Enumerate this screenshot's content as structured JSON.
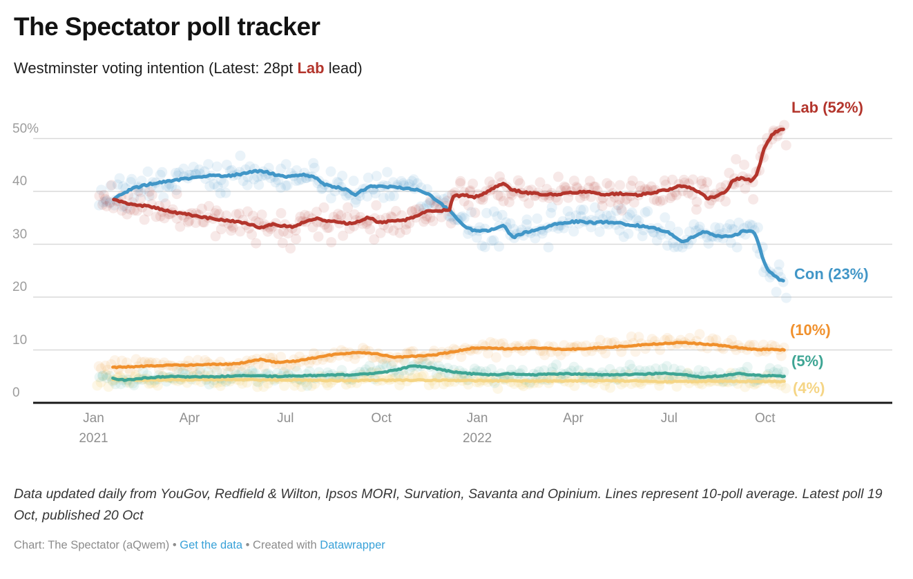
{
  "header": {
    "title": "The Spectator poll tracker"
  },
  "subtitle": {
    "prefix": "Westminster voting intention (Latest: 28pt ",
    "highlight": "Lab",
    "suffix": " lead)"
  },
  "colors": {
    "lab_red": "#b3352c",
    "con_blue": "#4196c7",
    "libdem_orange": "#f0902c",
    "green_teal": "#3ea594",
    "snp_yellow": "#f5d585",
    "gridline": "#d9d9d9",
    "axis_line": "#191919",
    "axis_text": "#9c9c9c",
    "link_blue": "#38a1d8"
  },
  "chart_data": {
    "type": "line",
    "title": "Westminster voting intention",
    "x_unit": "months since Jan 2021",
    "ylim": [
      0,
      56
    ],
    "grid": "horizontal",
    "y_axis": {
      "ticks": [
        {
          "value": 50,
          "label": "50%"
        },
        {
          "value": 40,
          "label": "40"
        },
        {
          "value": 30,
          "label": "30"
        },
        {
          "value": 20,
          "label": "20"
        },
        {
          "value": 10,
          "label": "10"
        },
        {
          "value": 0,
          "label": "0"
        }
      ]
    },
    "x_axis": {
      "ticks": [
        {
          "m": 0,
          "label": "Jan",
          "year": "2021"
        },
        {
          "m": 3,
          "label": "Apr",
          "year": ""
        },
        {
          "m": 6,
          "label": "Jul",
          "year": ""
        },
        {
          "m": 9,
          "label": "Oct",
          "year": ""
        },
        {
          "m": 12,
          "label": "Jan",
          "year": "2022"
        },
        {
          "m": 15,
          "label": "Apr",
          "year": ""
        },
        {
          "m": 18,
          "label": "Jul",
          "year": ""
        },
        {
          "m": 21,
          "label": "Oct",
          "year": ""
        }
      ]
    },
    "series": [
      {
        "id": "snp",
        "label": "(4%)",
        "latest": 4,
        "color": "#f5d585",
        "line_width": 4.5,
        "dot_opacity": 0.2,
        "scatter_sd": 0.95,
        "scatter_step": 0.1,
        "seed": 51,
        "points": [
          [
            0.6,
            4.4
          ],
          [
            2,
            4.3
          ],
          [
            4,
            4.4
          ],
          [
            6,
            4.3
          ],
          [
            8,
            4.2
          ],
          [
            10,
            4.3
          ],
          [
            12,
            4.2
          ],
          [
            14,
            4.1
          ],
          [
            16,
            4.2
          ],
          [
            18,
            4.0
          ],
          [
            19.5,
            4.1
          ],
          [
            21.6,
            4.0
          ]
        ]
      },
      {
        "id": "green",
        "label": "(5%)",
        "latest": 5,
        "color": "#3ea594",
        "line_width": 4.5,
        "dot_opacity": 0.1,
        "scatter_sd": 1.1,
        "scatter_step": 0.095,
        "seed": 41,
        "points": [
          [
            0.6,
            4.6
          ],
          [
            1.0,
            4.3
          ],
          [
            1.6,
            4.7
          ],
          [
            2.4,
            5.0
          ],
          [
            3.2,
            4.9
          ],
          [
            4.0,
            5.0
          ],
          [
            4.8,
            5.2
          ],
          [
            5.6,
            5.0
          ],
          [
            6.4,
            5.1
          ],
          [
            7.2,
            5.2
          ],
          [
            8.0,
            5.3
          ],
          [
            8.8,
            5.6
          ],
          [
            9.4,
            6.1
          ],
          [
            10.0,
            7.0
          ],
          [
            10.6,
            6.6
          ],
          [
            11.2,
            5.9
          ],
          [
            11.8,
            5.5
          ],
          [
            12.4,
            5.3
          ],
          [
            13.0,
            5.5
          ],
          [
            13.8,
            5.3
          ],
          [
            14.6,
            5.5
          ],
          [
            15.4,
            5.4
          ],
          [
            16.2,
            5.3
          ],
          [
            17.0,
            5.4
          ],
          [
            17.8,
            5.6
          ],
          [
            18.4,
            5.4
          ],
          [
            19.0,
            4.9
          ],
          [
            19.6,
            5.1
          ],
          [
            20.2,
            5.5
          ],
          [
            20.8,
            5.2
          ],
          [
            21.6,
            5.0
          ]
        ]
      },
      {
        "id": "libdem",
        "label": "(10%)",
        "latest": 10,
        "color": "#f0902c",
        "line_width": 4.5,
        "dot_opacity": 0.1,
        "scatter_sd": 1.15,
        "scatter_step": 0.095,
        "seed": 31,
        "points": [
          [
            0.6,
            6.7
          ],
          [
            1.5,
            6.9
          ],
          [
            2.5,
            7.1
          ],
          [
            3.5,
            7.2
          ],
          [
            4.5,
            7.4
          ],
          [
            5.2,
            8.2
          ],
          [
            5.7,
            7.7
          ],
          [
            6.3,
            7.9
          ],
          [
            7.0,
            8.6
          ],
          [
            7.6,
            9.2
          ],
          [
            8.2,
            9.5
          ],
          [
            8.8,
            9.3
          ],
          [
            9.4,
            8.6
          ],
          [
            10.0,
            8.8
          ],
          [
            10.6,
            9.0
          ],
          [
            11.2,
            9.6
          ],
          [
            11.8,
            10.3
          ],
          [
            12.4,
            10.4
          ],
          [
            13.0,
            10.2
          ],
          [
            13.6,
            10.4
          ],
          [
            14.2,
            10.3
          ],
          [
            14.8,
            10.1
          ],
          [
            15.4,
            10.3
          ],
          [
            16.0,
            10.5
          ],
          [
            16.6,
            10.7
          ],
          [
            17.2,
            11.0
          ],
          [
            17.8,
            11.2
          ],
          [
            18.4,
            11.4
          ],
          [
            19.0,
            11.2
          ],
          [
            19.6,
            10.9
          ],
          [
            20.2,
            10.4
          ],
          [
            20.8,
            10.1
          ],
          [
            21.6,
            10.0
          ]
        ]
      },
      {
        "id": "con",
        "label": "Con (23%)",
        "latest": 23,
        "color": "#4196c7",
        "line_width": 5,
        "dot_opacity": 0.11,
        "scatter_sd": 2.3,
        "scatter_step": 0.065,
        "seed": 21,
        "points": [
          [
            0.63,
            38.5
          ],
          [
            0.9,
            39.6
          ],
          [
            1.3,
            40.7
          ],
          [
            1.7,
            41.3
          ],
          [
            2.1,
            41.7
          ],
          [
            2.5,
            42.1
          ],
          [
            2.9,
            42.4
          ],
          [
            3.3,
            42.7
          ],
          [
            3.7,
            43.1
          ],
          [
            4.1,
            42.8
          ],
          [
            4.5,
            43.2
          ],
          [
            4.9,
            43.6
          ],
          [
            5.2,
            43.9
          ],
          [
            5.5,
            43.5
          ],
          [
            5.8,
            43.0
          ],
          [
            6.1,
            42.7
          ],
          [
            6.5,
            43.2
          ],
          [
            6.9,
            42.7
          ],
          [
            7.2,
            41.4
          ],
          [
            7.5,
            40.9
          ],
          [
            7.9,
            40.4
          ],
          [
            8.15,
            39.3
          ],
          [
            8.4,
            40.2
          ],
          [
            8.7,
            41.0
          ],
          [
            9.1,
            40.9
          ],
          [
            9.5,
            40.7
          ],
          [
            9.9,
            40.5
          ],
          [
            10.2,
            40.2
          ],
          [
            10.5,
            39.4
          ],
          [
            10.8,
            38.0
          ],
          [
            11.05,
            36.7
          ],
          [
            11.15,
            36.4
          ],
          [
            11.35,
            35.0
          ],
          [
            11.6,
            33.4
          ],
          [
            11.85,
            32.7
          ],
          [
            12.1,
            32.5
          ],
          [
            12.4,
            32.7
          ],
          [
            12.7,
            33.3
          ],
          [
            12.85,
            33.7
          ],
          [
            13.0,
            31.9
          ],
          [
            13.15,
            31.3
          ],
          [
            13.35,
            31.9
          ],
          [
            13.6,
            32.4
          ],
          [
            14.0,
            32.9
          ],
          [
            14.4,
            33.7
          ],
          [
            14.8,
            34.2
          ],
          [
            15.2,
            34.3
          ],
          [
            15.6,
            34.1
          ],
          [
            16.0,
            34.2
          ],
          [
            16.4,
            34.0
          ],
          [
            16.8,
            33.7
          ],
          [
            17.2,
            33.4
          ],
          [
            17.6,
            33.0
          ],
          [
            18.0,
            32.2
          ],
          [
            18.3,
            30.9
          ],
          [
            18.45,
            30.4
          ],
          [
            18.8,
            31.5
          ],
          [
            19.1,
            32.4
          ],
          [
            19.4,
            31.7
          ],
          [
            19.7,
            31.4
          ],
          [
            20.0,
            31.6
          ],
          [
            20.3,
            32.4
          ],
          [
            20.55,
            32.6
          ],
          [
            20.7,
            31.8
          ],
          [
            20.82,
            29.6
          ],
          [
            20.95,
            26.8
          ],
          [
            21.1,
            25.0
          ],
          [
            21.3,
            23.9
          ],
          [
            21.45,
            23.4
          ],
          [
            21.6,
            23.1
          ]
        ]
      },
      {
        "id": "lab",
        "label": "Lab (52%)",
        "latest": 52,
        "color": "#b3352c",
        "line_width": 5,
        "dot_opacity": 0.11,
        "scatter_sd": 2.3,
        "scatter_step": 0.065,
        "seed": 11,
        "points": [
          [
            0.63,
            38.5
          ],
          [
            1.0,
            37.8
          ],
          [
            1.4,
            37.4
          ],
          [
            1.8,
            37.1
          ],
          [
            2.2,
            36.5
          ],
          [
            2.6,
            35.9
          ],
          [
            3.0,
            35.6
          ],
          [
            3.4,
            35.1
          ],
          [
            3.8,
            34.8
          ],
          [
            4.2,
            34.5
          ],
          [
            4.6,
            34.1
          ],
          [
            5.0,
            33.5
          ],
          [
            5.3,
            33.1
          ],
          [
            5.6,
            33.8
          ],
          [
            5.9,
            33.5
          ],
          [
            6.3,
            33.3
          ],
          [
            6.7,
            34.6
          ],
          [
            7.0,
            34.9
          ],
          [
            7.3,
            34.4
          ],
          [
            7.7,
            34.1
          ],
          [
            8.0,
            33.9
          ],
          [
            8.3,
            34.3
          ],
          [
            8.6,
            35.1
          ],
          [
            8.9,
            34.2
          ],
          [
            9.3,
            34.3
          ],
          [
            9.7,
            34.5
          ],
          [
            10.1,
            35.3
          ],
          [
            10.4,
            36.2
          ],
          [
            10.7,
            36.2
          ],
          [
            11.0,
            36.5
          ],
          [
            11.13,
            36.6
          ],
          [
            11.25,
            39.1
          ],
          [
            11.6,
            39.3
          ],
          [
            11.9,
            38.9
          ],
          [
            12.2,
            39.6
          ],
          [
            12.6,
            41.0
          ],
          [
            12.8,
            41.4
          ],
          [
            13.1,
            40.3
          ],
          [
            13.5,
            39.8
          ],
          [
            14.0,
            39.4
          ],
          [
            14.5,
            39.4
          ],
          [
            15.0,
            39.8
          ],
          [
            15.5,
            40.0
          ],
          [
            16.0,
            39.4
          ],
          [
            16.5,
            39.6
          ],
          [
            17.0,
            39.3
          ],
          [
            17.5,
            39.8
          ],
          [
            18.0,
            40.3
          ],
          [
            18.35,
            41.1
          ],
          [
            18.7,
            40.6
          ],
          [
            19.0,
            39.6
          ],
          [
            19.2,
            38.7
          ],
          [
            19.5,
            39.1
          ],
          [
            19.8,
            40.2
          ],
          [
            20.0,
            42.2
          ],
          [
            20.3,
            42.5
          ],
          [
            20.55,
            42.1
          ],
          [
            20.7,
            42.6
          ],
          [
            20.82,
            44.8
          ],
          [
            20.95,
            47.8
          ],
          [
            21.1,
            49.6
          ],
          [
            21.25,
            51.0
          ],
          [
            21.4,
            51.3
          ],
          [
            21.6,
            52.0
          ]
        ]
      }
    ]
  },
  "footer": {
    "notes": "Data updated daily from YouGov, Redfield & Wilton, Ipsos MORI, Survation, Savanta and Opinium. Lines represent 10-poll average. Latest poll 19 Oct, published 20 Oct",
    "attribution_prefix": "Chart: The Spectator (aQwem)",
    "separator": "•",
    "link_get_data": "Get the data",
    "created_with": "Created with",
    "link_datawrapper": "Datawrapper"
  }
}
